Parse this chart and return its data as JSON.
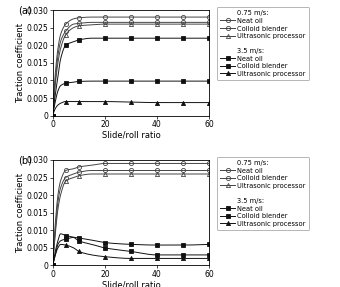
{
  "xlabel": "Slide/roll ratio",
  "ylabel": "Traction coefficient",
  "xlim": [
    0,
    60
  ],
  "ylim": [
    0,
    0.03
  ],
  "yticks": [
    0,
    0.005,
    0.01,
    0.015,
    0.02,
    0.025,
    0.03
  ],
  "ytick_labels": [
    "0",
    "0.005",
    "0.010",
    "0.015",
    "0.020",
    "0.025",
    "0.030"
  ],
  "xticks": [
    0,
    20,
    40,
    60
  ],
  "legend_header_075": "0.75 m/s:",
  "legend_header_35": "3.5 m/s:",
  "legend_entries_075": [
    "Neat oil",
    "Colloid blender",
    "Ultrasonic processor"
  ],
  "legend_entries_35": [
    "Neat oil",
    "Colloid blender",
    "Ultrasonic processor"
  ],
  "panel_a": {
    "y_075_neat": [
      0,
      0.012,
      0.019,
      0.023,
      0.026,
      0.0275,
      0.0278,
      0.028,
      0.028,
      0.028,
      0.028,
      0.028,
      0.028
    ],
    "y_075_colloid": [
      0,
      0.01,
      0.017,
      0.021,
      0.024,
      0.026,
      0.0262,
      0.0265,
      0.0265,
      0.0265,
      0.0265,
      0.0265,
      0.0265
    ],
    "y_075_ultrasonic": [
      0,
      0.009,
      0.015,
      0.019,
      0.023,
      0.025,
      0.0255,
      0.0258,
      0.026,
      0.026,
      0.026,
      0.026,
      0.026
    ],
    "y_35_neat": [
      0,
      0.004,
      0.007,
      0.0085,
      0.0092,
      0.0095,
      0.0097,
      0.0098,
      0.0098,
      0.0098,
      0.0098,
      0.0098,
      0.0098
    ],
    "y_35_colloid": [
      0,
      0.006,
      0.011,
      0.016,
      0.02,
      0.021,
      0.0215,
      0.022,
      0.022,
      0.022,
      0.022,
      0.022,
      0.022
    ],
    "y_35_ultrasonic": [
      0,
      0.002,
      0.003,
      0.0035,
      0.004,
      0.004,
      0.004,
      0.004,
      0.004,
      0.0038,
      0.0037,
      0.0037,
      0.0037
    ]
  },
  "panel_b": {
    "y_075_neat": [
      0,
      0.012,
      0.02,
      0.024,
      0.027,
      0.0275,
      0.028,
      0.0285,
      0.029,
      0.029,
      0.029,
      0.029,
      0.029
    ],
    "y_075_colloid": [
      0,
      0.01,
      0.018,
      0.022,
      0.025,
      0.026,
      0.0265,
      0.027,
      0.027,
      0.027,
      0.027,
      0.027,
      0.027
    ],
    "y_075_ultrasonic": [
      0,
      0.009,
      0.016,
      0.02,
      0.024,
      0.025,
      0.0255,
      0.026,
      0.026,
      0.026,
      0.026,
      0.026,
      0.026
    ],
    "y_35_neat": [
      0,
      0.003,
      0.006,
      0.007,
      0.0075,
      0.008,
      0.0078,
      0.0072,
      0.0065,
      0.006,
      0.0058,
      0.0058,
      0.006
    ],
    "y_35_colloid": [
      0,
      0.004,
      0.007,
      0.009,
      0.0085,
      0.008,
      0.007,
      0.006,
      0.005,
      0.004,
      0.003,
      0.003,
      0.003
    ],
    "y_35_ultrasonic": [
      0,
      0.003,
      0.005,
      0.006,
      0.0058,
      0.005,
      0.004,
      0.003,
      0.0025,
      0.002,
      0.002,
      0.002,
      0.002
    ]
  }
}
